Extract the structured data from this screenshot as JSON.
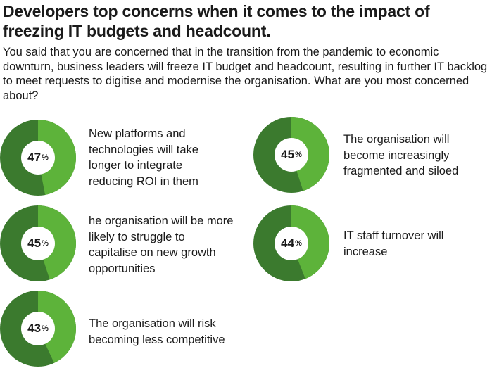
{
  "title": "Developers top concerns when it comes to the impact of freezing IT budgets and headcount.",
  "subtitle": "You said that you are concerned that in the transition from the pandemic to economic downturn, business leaders will freeze IT budget and headcount, resulting in further IT backlog to meet requests to digitise and modernise the organisation. What are you most concerned about?",
  "colors": {
    "light": "#5db33a",
    "dark": "#3b7a2e",
    "hole": "#ffffff"
  },
  "chart_data": {
    "type": "pie",
    "unit": "%",
    "items": [
      {
        "value": 47,
        "label": "New platforms and technologies will take longer to integrate reducing ROI in them"
      },
      {
        "value": 45,
        "label": "The organisation will become increasingly fragmented and siloed"
      },
      {
        "value": 45,
        "label": "he organisation will be more likely to struggle to capitalise on new growth opportunities"
      },
      {
        "value": 44,
        "label": "IT staff turnover will increase"
      },
      {
        "value": 43,
        "label": "The organisation will risk becoming less competitive"
      }
    ]
  }
}
